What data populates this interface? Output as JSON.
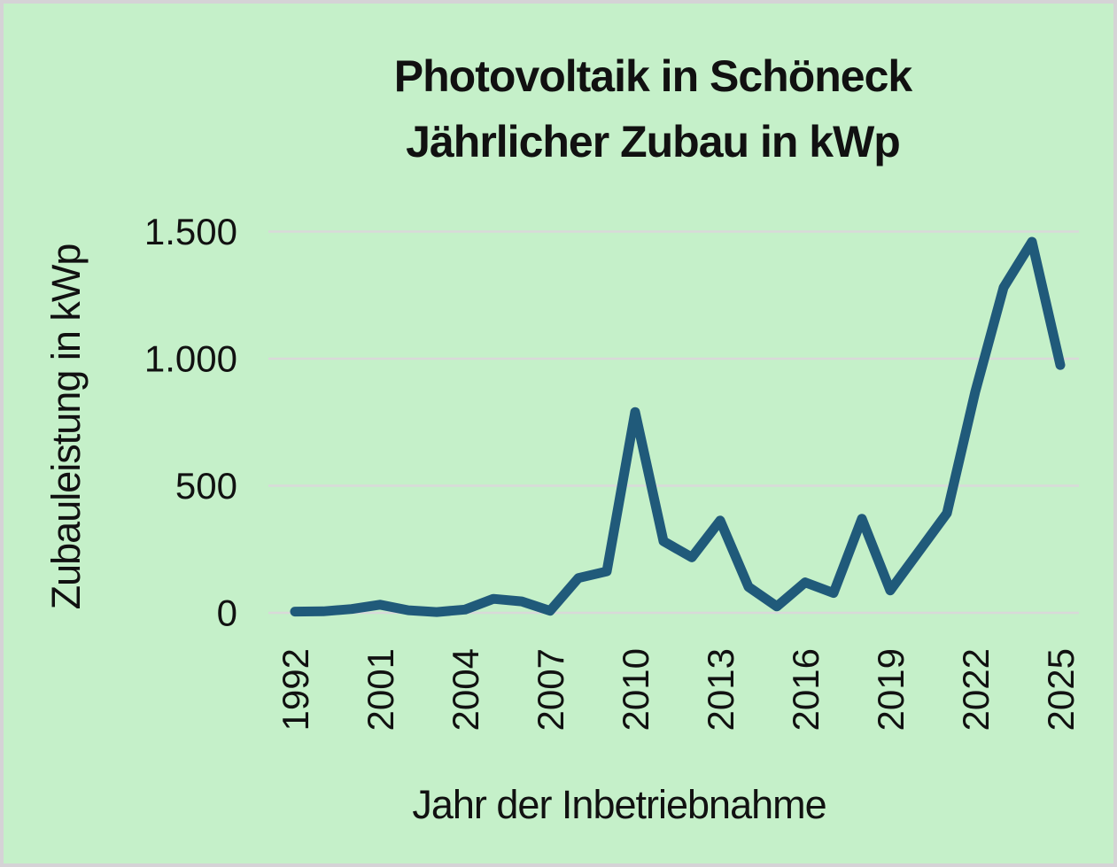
{
  "chart": {
    "title_line1": "Photovoltaik in Schöneck",
    "title_line2": "Jährlicher Zubau in kWp",
    "x_axis_title": "Jahr der Inbetriebnahme",
    "y_axis_title": "Zubauleistung in kWp"
  },
  "chart_data": {
    "type": "line",
    "title": "Photovoltaik in Schöneck — Jährlicher Zubau in kWp",
    "xlabel": "Jahr der Inbetriebnahme",
    "ylabel": "Zubauleistung in kWp",
    "categories": [
      1992,
      1999,
      2000,
      2001,
      2002,
      2003,
      2004,
      2005,
      2006,
      2007,
      2008,
      2009,
      2010,
      2011,
      2012,
      2013,
      2014,
      2015,
      2016,
      2017,
      2018,
      2019,
      2020,
      2021,
      2022,
      2023,
      2024,
      2025
    ],
    "values": [
      5,
      6,
      15,
      32,
      10,
      3,
      13,
      55,
      45,
      8,
      137,
      163,
      790,
      282,
      218,
      363,
      102,
      25,
      120,
      78,
      370,
      88,
      240,
      392,
      870,
      1280,
      1460,
      975
    ],
    "ylim": [
      0,
      1500
    ],
    "y_ticks": [
      {
        "value": 0,
        "label": "0"
      },
      {
        "value": 500,
        "label": "500"
      },
      {
        "value": 1000,
        "label": "1.000"
      },
      {
        "value": 1500,
        "label": "1.500"
      }
    ],
    "x_tick_every": 3,
    "grid": "horizontal",
    "legend": "none",
    "line_color": "#205a7a",
    "background_color": "#c5f0c9",
    "gridline_color": "#d9d9d9"
  }
}
